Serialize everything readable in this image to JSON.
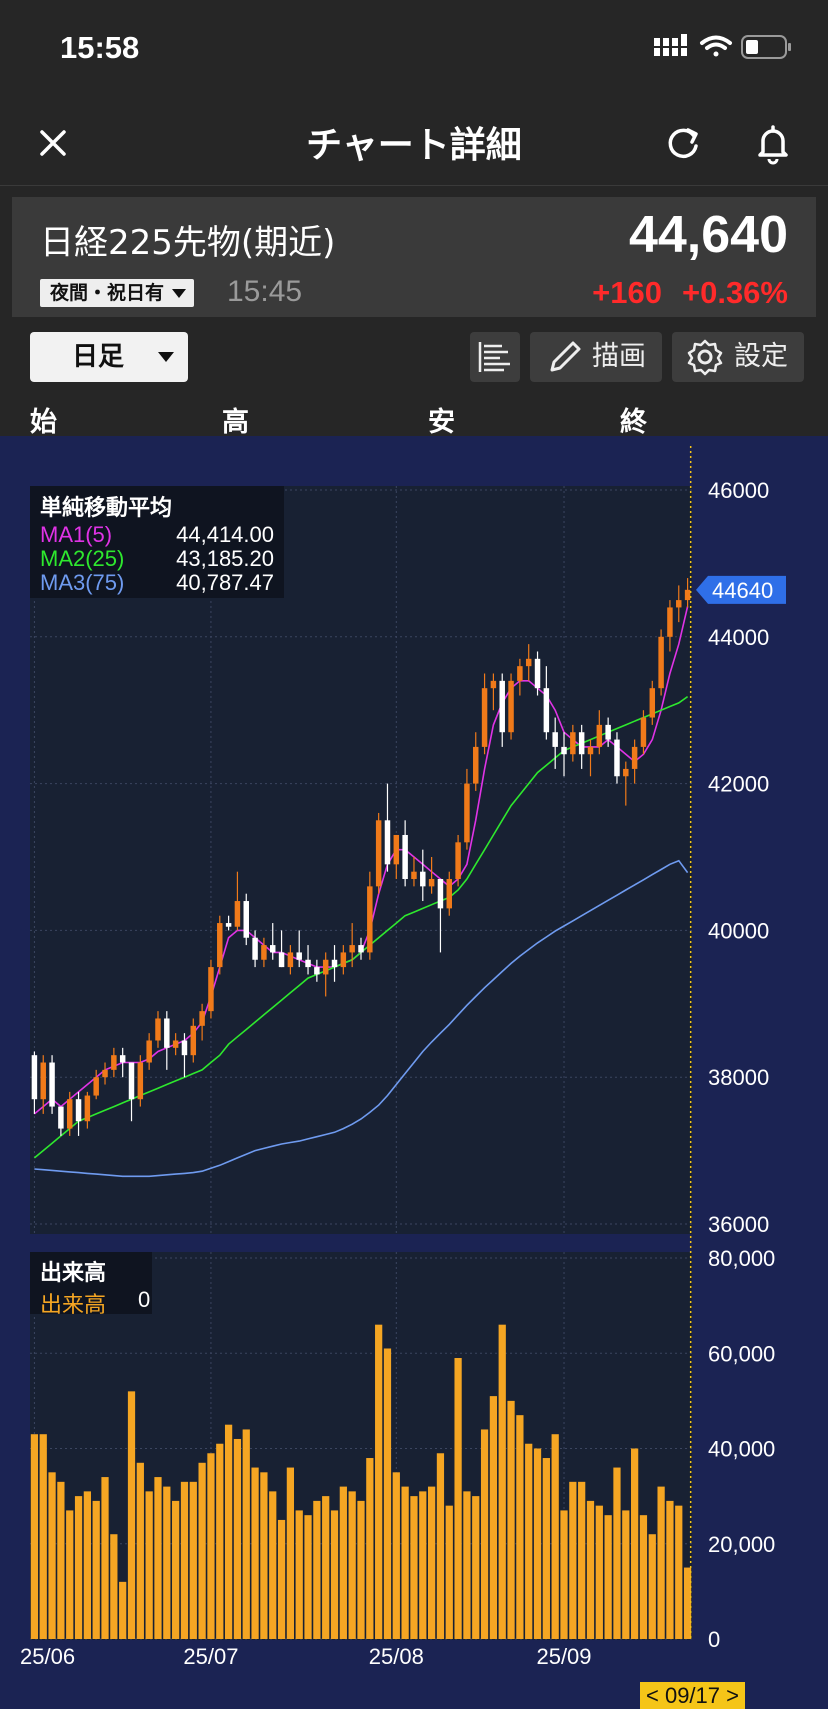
{
  "status": {
    "time": "15:58"
  },
  "nav": {
    "title": "チャート詳細"
  },
  "quote": {
    "name": "日経225先物(期近)",
    "price": "44,640",
    "session": "夜間・祝日有",
    "time": "15:45",
    "change": "+160",
    "change_pct": "+0.36%",
    "up_color": "#ff2a2a"
  },
  "toolbar": {
    "period": "日足",
    "draw_label": "描画",
    "settings_label": "設定"
  },
  "ohlc_labels": {
    "open": "始",
    "high": "高",
    "low": "安",
    "close": "終"
  },
  "ma_legend": {
    "title": "単純移動平均",
    "items": [
      {
        "name": "MA1(5)",
        "value": "44,414.00",
        "color": "#e033e6"
      },
      {
        "name": "MA2(25)",
        "value": "43,185.20",
        "color": "#2ee82e"
      },
      {
        "name": "MA3(75)",
        "value": "40,787.47",
        "color": "#6f9bf0"
      }
    ]
  },
  "volume_legend": {
    "title": "出来高",
    "name": "出来高",
    "value": "0"
  },
  "cursor_date": "< 09/17 >",
  "chart_data": {
    "type": "candlestick",
    "price_axis": {
      "ylim": [
        36000,
        46000
      ],
      "ticks": [
        46000,
        44000,
        42000,
        40000,
        38000,
        36000
      ],
      "last_price_label": "44640",
      "last_price": 44640
    },
    "volume_axis": {
      "ylim": [
        0,
        80000
      ],
      "ticks": [
        "80,000",
        "60,000",
        "40,000",
        "20,000",
        "0"
      ],
      "tick_values": [
        80000,
        60000,
        40000,
        20000,
        0
      ]
    },
    "x_tick_labels": [
      {
        "label": "25/06",
        "index": 0
      },
      {
        "label": "25/07",
        "index": 20
      },
      {
        "label": "25/08",
        "index": 41
      },
      {
        "label": "25/09",
        "index": 60
      }
    ],
    "candles": [
      [
        38300,
        38350,
        37500,
        37700
      ],
      [
        37700,
        38300,
        37500,
        38200
      ],
      [
        38200,
        38300,
        37500,
        37600
      ],
      [
        37600,
        37600,
        37200,
        37300
      ],
      [
        37300,
        37800,
        37200,
        37700
      ],
      [
        37700,
        37800,
        37200,
        37400
      ],
      [
        37400,
        37800,
        37300,
        37750
      ],
      [
        37750,
        38100,
        37700,
        38000
      ],
      [
        38000,
        38200,
        37900,
        38100
      ],
      [
        38100,
        38400,
        38000,
        38300
      ],
      [
        38300,
        38400,
        38000,
        38200
      ],
      [
        38200,
        38200,
        37400,
        37700
      ],
      [
        37700,
        38300,
        37600,
        38200
      ],
      [
        38200,
        38600,
        38100,
        38500
      ],
      [
        38500,
        38900,
        38400,
        38800
      ],
      [
        38800,
        38900,
        38100,
        38400
      ],
      [
        38400,
        38600,
        38300,
        38500
      ],
      [
        38500,
        38600,
        38000,
        38300
      ],
      [
        38300,
        38800,
        38200,
        38700
      ],
      [
        38700,
        39000,
        38500,
        38900
      ],
      [
        38900,
        39600,
        38800,
        39500
      ],
      [
        39500,
        40200,
        39400,
        40100
      ],
      [
        40100,
        40200,
        40000,
        40050
      ],
      [
        40050,
        40800,
        40000,
        40400
      ],
      [
        40400,
        40500,
        39800,
        39900
      ],
      [
        39900,
        40000,
        39500,
        39600
      ],
      [
        39600,
        39900,
        39500,
        39800
      ],
      [
        39800,
        40100,
        39600,
        39700
      ],
      [
        39700,
        40000,
        39500,
        39500
      ],
      [
        39500,
        39800,
        39400,
        39700
      ],
      [
        39700,
        40000,
        39500,
        39600
      ],
      [
        39600,
        39800,
        39400,
        39500
      ],
      [
        39500,
        39600,
        39300,
        39400
      ],
      [
        39400,
        39700,
        39100,
        39600
      ],
      [
        39600,
        39800,
        39300,
        39500
      ],
      [
        39500,
        39800,
        39400,
        39700
      ],
      [
        39700,
        40100,
        39500,
        39800
      ],
      [
        39800,
        39900,
        39600,
        39700
      ],
      [
        39700,
        40800,
        39600,
        40600
      ],
      [
        40600,
        41600,
        40500,
        41500
      ],
      [
        41500,
        42000,
        40800,
        40900
      ],
      [
        40900,
        41300,
        40700,
        41300
      ],
      [
        41300,
        41500,
        40600,
        40700
      ],
      [
        40700,
        41000,
        40600,
        40800
      ],
      [
        40800,
        41100,
        40400,
        40600
      ],
      [
        40600,
        41000,
        40500,
        40700
      ],
      [
        40700,
        40700,
        39700,
        40300
      ],
      [
        40300,
        40800,
        40200,
        40700
      ],
      [
        40700,
        41300,
        40600,
        41200
      ],
      [
        41200,
        42200,
        41100,
        42000
      ],
      [
        42000,
        42700,
        41900,
        42500
      ],
      [
        42500,
        43500,
        42400,
        43300
      ],
      [
        43300,
        43500,
        43000,
        43400
      ],
      [
        43400,
        43500,
        42500,
        42700
      ],
      [
        42700,
        43500,
        42600,
        43400
      ],
      [
        43400,
        43700,
        43200,
        43600
      ],
      [
        43600,
        43900,
        43400,
        43700
      ],
      [
        43700,
        43800,
        43200,
        43300
      ],
      [
        43300,
        43600,
        42600,
        42700
      ],
      [
        42700,
        42900,
        42200,
        42500
      ],
      [
        42500,
        42700,
        42100,
        42400
      ],
      [
        42400,
        42800,
        42300,
        42700
      ],
      [
        42700,
        42800,
        42200,
        42400
      ],
      [
        42400,
        42600,
        42100,
        42500
      ],
      [
        42500,
        43000,
        42400,
        42800
      ],
      [
        42800,
        42900,
        42500,
        42600
      ],
      [
        42600,
        42700,
        42000,
        42100
      ],
      [
        42100,
        42300,
        41700,
        42200
      ],
      [
        42200,
        42600,
        42000,
        42500
      ],
      [
        42500,
        43000,
        42400,
        42900
      ],
      [
        42900,
        43400,
        42800,
        43300
      ],
      [
        43300,
        44100,
        43200,
        44000
      ],
      [
        44000,
        44500,
        43800,
        44400
      ],
      [
        44400,
        44700,
        44200,
        44500
      ],
      [
        44500,
        44800,
        44400,
        44640
      ]
    ],
    "volume": [
      43000,
      43000,
      35000,
      33000,
      27000,
      30000,
      31000,
      29000,
      34000,
      22000,
      12000,
      52000,
      37000,
      31000,
      34000,
      32000,
      29000,
      33000,
      33000,
      37000,
      39000,
      41000,
      45000,
      42000,
      44000,
      36000,
      35000,
      31000,
      25000,
      36000,
      27000,
      26000,
      29000,
      30000,
      27000,
      32000,
      31000,
      29000,
      38000,
      66000,
      61000,
      35000,
      32000,
      30000,
      31000,
      32000,
      39000,
      28000,
      59000,
      31000,
      30000,
      44000,
      51000,
      66000,
      50000,
      47000,
      41000,
      40000,
      38000,
      43000,
      27000,
      33000,
      33000,
      29000,
      28000,
      26000,
      36000,
      27000,
      40000,
      26000,
      22000,
      32000,
      29000,
      28000,
      15000
    ],
    "ma_series": [
      {
        "name": "MA1(5)",
        "color": "#e033e6",
        "values": [
          37500,
          37600,
          37700,
          37600,
          37700,
          37800,
          37900,
          38000,
          38100,
          38150,
          38200,
          38200,
          38200,
          38250,
          38350,
          38400,
          38450,
          38500,
          38600,
          38750,
          39100,
          39500,
          39900,
          40000,
          40000,
          39900,
          39800,
          39700,
          39700,
          39650,
          39600,
          39550,
          39500,
          39500,
          39500,
          39550,
          39600,
          39700,
          40000,
          40500,
          40900,
          41100,
          41100,
          41000,
          40900,
          40800,
          40700,
          40600,
          40700,
          40900,
          41500,
          42200,
          42800,
          43100,
          43300,
          43400,
          43400,
          43300,
          43200,
          43000,
          42700,
          42600,
          42500,
          42500,
          42500,
          42600,
          42500,
          42400,
          42300,
          42400,
          42600,
          43000,
          43500,
          43900,
          44414
        ]
      },
      {
        "name": "MA2(25)",
        "color": "#2ee82e",
        "values": [
          36900,
          37000,
          37100,
          37200,
          37300,
          37400,
          37450,
          37500,
          37550,
          37600,
          37650,
          37700,
          37750,
          37800,
          37850,
          37900,
          37950,
          38000,
          38050,
          38100,
          38200,
          38300,
          38450,
          38550,
          38650,
          38750,
          38850,
          38950,
          39050,
          39150,
          39250,
          39350,
          39400,
          39450,
          39500,
          39550,
          39600,
          39700,
          39800,
          39900,
          40000,
          40100,
          40200,
          40250,
          40300,
          40350,
          40400,
          40450,
          40550,
          40700,
          40900,
          41100,
          41300,
          41500,
          41700,
          41850,
          42000,
          42150,
          42250,
          42350,
          42450,
          42500,
          42550,
          42600,
          42650,
          42700,
          42750,
          42800,
          42850,
          42900,
          42950,
          43000,
          43050,
          43100,
          43185
        ]
      },
      {
        "name": "MA3(75)",
        "color": "#6f9bf0",
        "values": [
          36750,
          36740,
          36730,
          36720,
          36710,
          36700,
          36690,
          36680,
          36670,
          36660,
          36650,
          36650,
          36650,
          36650,
          36660,
          36670,
          36680,
          36690,
          36700,
          36720,
          36760,
          36800,
          36850,
          36900,
          36950,
          37000,
          37030,
          37060,
          37090,
          37110,
          37130,
          37160,
          37190,
          37220,
          37250,
          37300,
          37360,
          37430,
          37520,
          37620,
          37750,
          37900,
          38050,
          38200,
          38350,
          38480,
          38600,
          38720,
          38850,
          38980,
          39100,
          39220,
          39330,
          39440,
          39550,
          39650,
          39740,
          39830,
          39910,
          39990,
          40060,
          40130,
          40200,
          40270,
          40340,
          40410,
          40480,
          40550,
          40620,
          40690,
          40760,
          40830,
          40900,
          40950,
          40787
        ]
      }
    ]
  }
}
